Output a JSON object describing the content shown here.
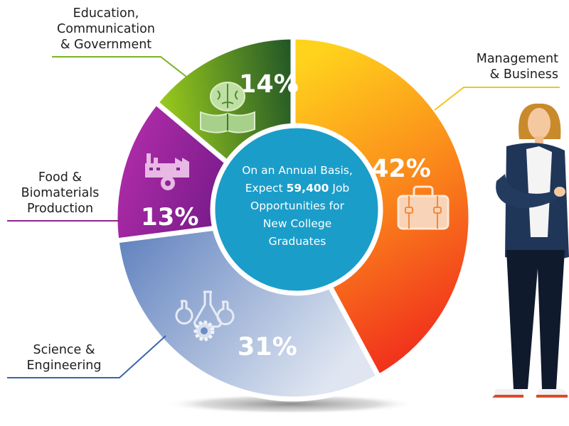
{
  "chart_data": {
    "type": "pie",
    "center": {
      "line1": "On an Annual Basis,",
      "line2_pre": "Expect",
      "line2_bold": "59,400",
      "line2_post": "Job",
      "line3": "Opportunities for",
      "line4": "New College",
      "line5": "Graduates"
    },
    "slices": [
      {
        "name_lines": [
          "Management",
          "& Business"
        ],
        "value": 42,
        "label": "42%",
        "icon": "briefcase-icon",
        "colors": [
          "#ffd21c",
          "#f23a1c"
        ],
        "line_color": "#f2c61a"
      },
      {
        "name_lines": [
          "Science &",
          "Engineering"
        ],
        "value": 31,
        "label": "31%",
        "icon": "lab-flasks-gear-icon",
        "colors": [
          "#5b7dbc",
          "#cfdaeb"
        ],
        "line_color": "#3a64ad"
      },
      {
        "name_lines": [
          "Food &",
          "Biomaterials",
          "Production"
        ],
        "value": 13,
        "label": "13%",
        "icon": "factory-gear-icon",
        "colors": [
          "#b02fa6",
          "#6a1680"
        ],
        "line_color": "#8e2590"
      },
      {
        "name_lines": [
          "Education,",
          "Communication",
          "& Government"
        ],
        "value": 14,
        "label": "14%",
        "icon": "brain-book-icon",
        "colors": [
          "#8cc21e",
          "#215a28"
        ],
        "line_color": "#7cb327"
      }
    ]
  }
}
